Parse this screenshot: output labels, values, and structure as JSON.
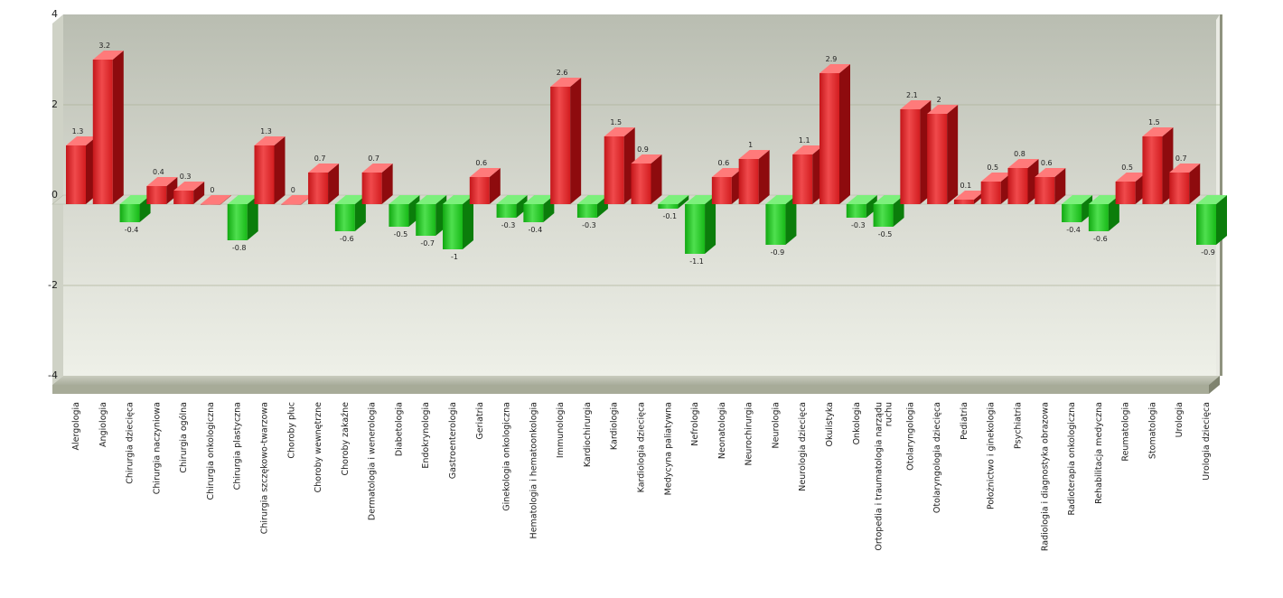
{
  "chart_data": {
    "type": "bar",
    "title": "",
    "xlabel": "",
    "ylabel": "",
    "ylim": [
      -4,
      4
    ],
    "yticks": [
      4,
      2,
      0,
      -2,
      -4
    ],
    "grid": true,
    "legend": "none",
    "colors": {
      "positive": "#e3191c",
      "negative": "#19c419",
      "plot_bg_top": "#b8bcb0",
      "plot_bg_bottom": "#f0f1ea"
    },
    "categories": [
      "Alergologia",
      "Angiologia",
      "Chirurgia dziecięca",
      "Chirurgia naczyniowa",
      "Chirurgia ogólna",
      "Chirurgia onkologiczna",
      "Chirurgia plastyczna",
      "Chirurgia szczękowo-twarzowa",
      "Choroby płuc",
      "Choroby wewnętrzne",
      "Choroby zakaźne",
      "Dermatologia i wenerologia",
      "Diabetologia",
      "Endokrynologia",
      "Gastroenterologia",
      "Geriatria",
      "Ginekologia onkologiczna",
      "Hematologia i hematoonkologia",
      "Immunologia",
      "Kardiochirurgia",
      "Kardiologia",
      "Kardiologia dziecięca",
      "Medycyna paliatywna",
      "Nefrologia",
      "Neonatologia",
      "Neurochirurgia",
      "Neurologia",
      "Neurologia dziecięca",
      "Okulistyka",
      "Onkologia",
      "Ortopedia i traumatologia narządu ruchu",
      "Otolaryngologia",
      "Otolaryngologia dziecięca",
      "Pediatria",
      "Położnictwo i ginekologia",
      "Psychiatria",
      "Radiologia i diagnostyka obrazowa",
      "Radioterapia onkologiczna",
      "Rehabilitacja medyczna",
      "Reumatologia",
      "Stomatologia",
      "Urologia",
      "Urologia dziecięca"
    ],
    "values": [
      1.3,
      3.2,
      -0.4,
      0.4,
      0.3,
      0,
      -0.8,
      1.3,
      0,
      0.7,
      -0.6,
      0.7,
      -0.5,
      -0.7,
      -1,
      0.6,
      -0.3,
      -0.4,
      2.6,
      -0.3,
      1.5,
      0.9,
      -0.1,
      -1.1,
      0.6,
      1,
      -0.9,
      1.1,
      2.9,
      -0.3,
      -0.5,
      2.1,
      2,
      0.1,
      0.5,
      0.8,
      0.6,
      -0.4,
      -0.6,
      0.5,
      1.5,
      0.7,
      -0.9
    ],
    "value_labels": [
      "1.3",
      "3.2",
      "-0.4",
      "0.4",
      "0.3",
      "0",
      "-0.8",
      "1.3",
      "0",
      "0.7",
      "-0.6",
      "0.7",
      "-0.5",
      "-0.7",
      "-1",
      "0.6",
      "-0.3",
      "-0.4",
      "2.6",
      "-0.3",
      "1.5",
      "0.9",
      "-0.1",
      "-1.1",
      "0.6",
      "1",
      "-0.9",
      "1.1",
      "2.9",
      "-0.3",
      "-0.5",
      "2.1",
      "2",
      "0.1",
      "0.5",
      "0.8",
      "0.6",
      "-0.4",
      "-0.6",
      "0.5",
      "1.5",
      "0.7",
      "-0.9"
    ],
    "axis_labels_wrapped": {
      "Ortopedia i traumatologia narządu ruchu": [
        "Ortopedia i traumatologia narządu",
        "ruchu"
      ]
    }
  }
}
